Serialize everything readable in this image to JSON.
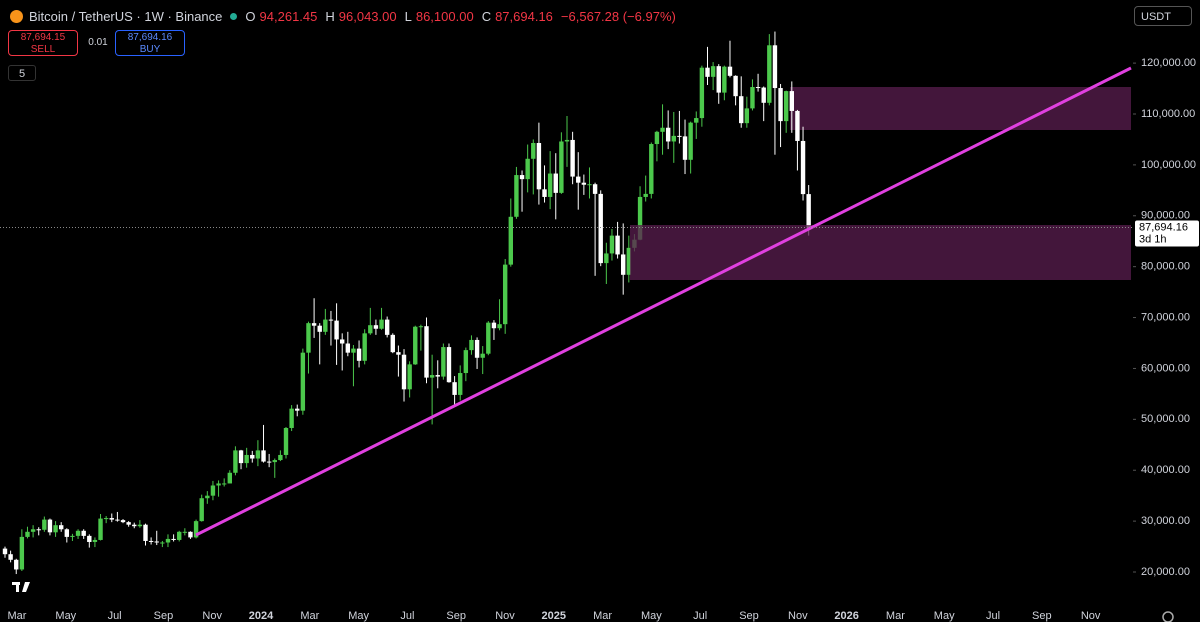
{
  "header": {
    "symbol": "Bitcoin / TetherUS · 1W · Binance",
    "o_label": "O",
    "o": "94,261.45",
    "h_label": "H",
    "h": "96,043.00",
    "l_label": "L",
    "l": "86,100.00",
    "c_label": "C",
    "c": "87,694.16",
    "change": "−6,567.28 (−6.97%)",
    "sell_price": "87,694.15",
    "sell": "SELL",
    "spread": "0.01",
    "buy_price": "87,694.16",
    "buy": "BUY",
    "indicators": "5",
    "currency": "USDT"
  },
  "chart_data": {
    "type": "candlestick",
    "up_color": "#4cc94c",
    "down_color": "#ffffff",
    "ylim": [
      14500,
      132400
    ],
    "yticks": [
      {
        "value": 20000,
        "label": "20,000.00"
      },
      {
        "value": 30000,
        "label": "30,000.00"
      },
      {
        "value": 40000,
        "label": "40,000.00"
      },
      {
        "value": 50000,
        "label": "50,000.00"
      },
      {
        "value": 60000,
        "label": "60,000.00"
      },
      {
        "value": 70000,
        "label": "70,000.00"
      },
      {
        "value": 80000,
        "label": "80,000.00"
      },
      {
        "value": 90000,
        "label": "90,000.00"
      },
      {
        "value": 100000,
        "label": "100,000.00"
      },
      {
        "value": 110000,
        "label": "110,000.00"
      },
      {
        "value": 120000,
        "label": "120,000.00"
      }
    ],
    "x_labels": [
      "Mar",
      "May",
      "Jul",
      "Sep",
      "Nov",
      "2024",
      "Mar",
      "May",
      "Jul",
      "Sep",
      "Nov",
      "2025",
      "Mar",
      "May",
      "Jul",
      "Sep",
      "Nov",
      "2026",
      "Mar",
      "May",
      "Jul",
      "Sep",
      "Nov"
    ],
    "last_price_label": "87,694.16",
    "countdown": "3d 1h",
    "ohlc": [
      [
        24600,
        25000,
        22800,
        23500
      ],
      [
        23500,
        24200,
        21900,
        22400
      ],
      [
        22400,
        22600,
        19600,
        20500
      ],
      [
        20500,
        28400,
        20200,
        26900
      ],
      [
        26900,
        28900,
        26600,
        27900
      ],
      [
        27900,
        29200,
        26800,
        28400
      ],
      [
        28400,
        28800,
        27200,
        28300
      ],
      [
        28300,
        30900,
        27900,
        30300
      ],
      [
        30300,
        30500,
        27200,
        27800
      ],
      [
        27800,
        30000,
        26900,
        29200
      ],
      [
        29200,
        29800,
        27900,
        28400
      ],
      [
        28400,
        28600,
        25800,
        26900
      ],
      [
        26900,
        27500,
        26100,
        27100
      ],
      [
        27100,
        28400,
        26500,
        28100
      ],
      [
        28100,
        28400,
        26500,
        27100
      ],
      [
        27100,
        27400,
        24800,
        25900
      ],
      [
        25900,
        26800,
        24900,
        26300
      ],
      [
        26300,
        31400,
        26200,
        30500
      ],
      [
        30500,
        31000,
        29600,
        30600
      ],
      [
        30600,
        31500,
        29800,
        30300
      ],
      [
        30300,
        31800,
        29900,
        30200
      ],
      [
        30200,
        30400,
        29600,
        29800
      ],
      [
        29800,
        30000,
        28900,
        29300
      ],
      [
        29300,
        29700,
        28600,
        29000
      ],
      [
        29000,
        30200,
        28700,
        29300
      ],
      [
        29300,
        29500,
        25200,
        26100
      ],
      [
        26100,
        26800,
        25400,
        26000
      ],
      [
        26000,
        28100,
        25300,
        25800
      ],
      [
        25800,
        26100,
        24900,
        25800
      ],
      [
        25800,
        27400,
        24900,
        26500
      ],
      [
        26500,
        27400,
        26000,
        26300
      ],
      [
        26300,
        28100,
        26000,
        27900
      ],
      [
        27900,
        28600,
        27200,
        27900
      ],
      [
        27900,
        28000,
        26500,
        26800
      ],
      [
        26800,
        30300,
        26600,
        30000
      ],
      [
        30000,
        35200,
        29900,
        34500
      ],
      [
        34500,
        35900,
        33400,
        35000
      ],
      [
        35000,
        37900,
        34100,
        37000
      ],
      [
        37000,
        38000,
        34800,
        37400
      ],
      [
        37400,
        38400,
        36800,
        37400
      ],
      [
        37400,
        40000,
        37400,
        39500
      ],
      [
        39500,
        44700,
        39000,
        43900
      ],
      [
        43900,
        44000,
        40200,
        41400
      ],
      [
        41400,
        44400,
        40500,
        43000
      ],
      [
        43000,
        43800,
        41500,
        42300
      ],
      [
        42300,
        45900,
        40800,
        43900
      ],
      [
        43900,
        48900,
        41500,
        41700
      ],
      [
        41700,
        43200,
        40600,
        41600
      ],
      [
        41600,
        42300,
        38500,
        42000
      ],
      [
        42000,
        43900,
        41800,
        43000
      ],
      [
        43000,
        48500,
        42300,
        48300
      ],
      [
        48300,
        52800,
        47700,
        52100
      ],
      [
        52100,
        52900,
        50600,
        51700
      ],
      [
        51700,
        63900,
        50900,
        63100
      ],
      [
        63100,
        69200,
        59000,
        68900
      ],
      [
        68900,
        73800,
        66000,
        68400
      ],
      [
        68400,
        68900,
        60800,
        67200
      ],
      [
        67200,
        71700,
        66600,
        69600
      ],
      [
        69600,
        71300,
        64500,
        69400
      ],
      [
        69400,
        72800,
        60700,
        65700
      ],
      [
        65700,
        66900,
        59600,
        64900
      ],
      [
        64900,
        67200,
        62400,
        63100
      ],
      [
        63100,
        64600,
        56500,
        63900
      ],
      [
        63900,
        65500,
        60200,
        61500
      ],
      [
        61500,
        67700,
        60800,
        66900
      ],
      [
        66900,
        71900,
        66600,
        68500
      ],
      [
        68500,
        69600,
        66600,
        67800
      ],
      [
        67800,
        71900,
        67600,
        69600
      ],
      [
        69600,
        70200,
        66100,
        66600
      ],
      [
        66600,
        66900,
        63000,
        63200
      ],
      [
        63200,
        64500,
        58400,
        62700
      ],
      [
        62700,
        63800,
        53500,
        55900
      ],
      [
        55900,
        61400,
        54300,
        60800
      ],
      [
        60800,
        68400,
        60700,
        68200
      ],
      [
        68200,
        68600,
        63500,
        68300
      ],
      [
        68300,
        70000,
        57100,
        58200
      ],
      [
        58200,
        62700,
        49000,
        58700
      ],
      [
        58700,
        61600,
        56100,
        58400
      ],
      [
        58400,
        64900,
        57800,
        64200
      ],
      [
        64200,
        64900,
        57200,
        57300
      ],
      [
        57300,
        58500,
        52500,
        54800
      ],
      [
        54800,
        60600,
        53700,
        59100
      ],
      [
        59100,
        64100,
        57500,
        63600
      ],
      [
        63600,
        66500,
        62700,
        65600
      ],
      [
        65600,
        66100,
        59900,
        62100
      ],
      [
        62100,
        64400,
        58900,
        62900
      ],
      [
        62900,
        69300,
        62600,
        69000
      ],
      [
        69000,
        69500,
        65600,
        67900
      ],
      [
        67900,
        73600,
        67500,
        68700
      ],
      [
        68700,
        81500,
        66800,
        80400
      ],
      [
        80400,
        93400,
        80000,
        89800
      ],
      [
        89800,
        99600,
        89400,
        98000
      ],
      [
        98000,
        98900,
        90800,
        97200
      ],
      [
        97200,
        104000,
        94600,
        101200
      ],
      [
        101200,
        105000,
        94200,
        104300
      ],
      [
        104300,
        108300,
        92200,
        95200
      ],
      [
        95200,
        99900,
        92600,
        93700
      ],
      [
        93700,
        102700,
        91300,
        98300
      ],
      [
        98300,
        102300,
        89300,
        94500
      ],
      [
        94500,
        106400,
        94300,
        104600
      ],
      [
        104600,
        109600,
        99600,
        104900
      ],
      [
        104900,
        106500,
        96200,
        97700
      ],
      [
        97700,
        102500,
        91200,
        96500
      ],
      [
        96500,
        98100,
        94100,
        96100
      ],
      [
        96100,
        99500,
        93400,
        96200
      ],
      [
        96200,
        96500,
        78200,
        94300
      ],
      [
        94300,
        95000,
        80100,
        80700
      ],
      [
        80700,
        84700,
        76600,
        82600
      ],
      [
        82600,
        87400,
        81200,
        86100
      ],
      [
        86100,
        88800,
        81600,
        82400
      ],
      [
        82400,
        88500,
        74500,
        78400
      ],
      [
        78400,
        86100,
        76900,
        83700
      ],
      [
        83700,
        86400,
        83000,
        85300
      ],
      [
        85300,
        95800,
        85200,
        93700
      ],
      [
        93700,
        97900,
        92800,
        94300
      ],
      [
        94300,
        104400,
        93400,
        104100
      ],
      [
        104100,
        106700,
        100700,
        106500
      ],
      [
        106500,
        111900,
        102000,
        107300
      ],
      [
        107300,
        110700,
        103100,
        104600
      ],
      [
        104600,
        110400,
        100400,
        105700
      ],
      [
        105700,
        110600,
        104200,
        105600
      ],
      [
        105600,
        108900,
        98200,
        101000
      ],
      [
        101000,
        108500,
        98300,
        108300
      ],
      [
        108300,
        110500,
        105100,
        109200
      ],
      [
        109200,
        119500,
        107500,
        119100
      ],
      [
        119100,
        123200,
        115700,
        117300
      ],
      [
        117300,
        120200,
        114700,
        119400
      ],
      [
        119400,
        119800,
        112000,
        114200
      ],
      [
        114200,
        119500,
        112700,
        119300
      ],
      [
        119300,
        124400,
        117200,
        117500
      ],
      [
        117500,
        117600,
        111700,
        113500
      ],
      [
        113500,
        117400,
        107300,
        108200
      ],
      [
        108200,
        113400,
        107300,
        111100
      ],
      [
        111100,
        116800,
        110700,
        115300
      ],
      [
        115300,
        117900,
        114400,
        115200
      ],
      [
        115200,
        115400,
        108600,
        112200
      ],
      [
        112200,
        125700,
        111700,
        123500
      ],
      [
        123500,
        126200,
        102000,
        115100
      ],
      [
        115100,
        115900,
        103500,
        108600
      ],
      [
        108600,
        114600,
        106300,
        114500
      ],
      [
        114500,
        116400,
        106300,
        110600
      ],
      [
        110600,
        110800,
        98900,
        104700
      ],
      [
        104700,
        107500,
        93000,
        94261.45
      ],
      [
        94261.45,
        96043,
        86100,
        87694.16
      ]
    ]
  }
}
